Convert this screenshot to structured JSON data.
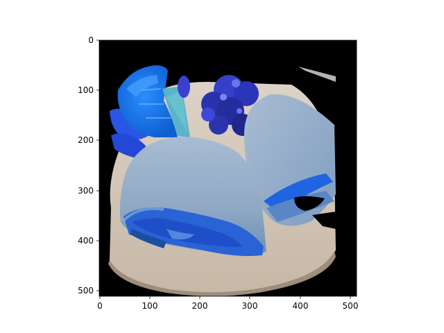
{
  "figure": {
    "background": "#ffffff",
    "image_description_colors": {
      "background": "#000000",
      "plate": "#d9cdc0",
      "wrap": "#8aa6c4",
      "orange_wedge": "#1e78ee",
      "flowers": "#3b4fd6"
    }
  },
  "axes": {
    "x_ticks": [
      "0",
      "100",
      "200",
      "300",
      "400",
      "500"
    ],
    "y_ticks": [
      "0",
      "100",
      "200",
      "300",
      "400",
      "500"
    ],
    "xlim": [
      0,
      512
    ],
    "ylim": [
      512,
      0
    ]
  },
  "chart_data": {
    "type": "image",
    "title": "",
    "xlabel": "",
    "ylabel": "",
    "x_ticks": [
      0,
      100,
      200,
      300,
      400,
      500
    ],
    "y_ticks": [
      0,
      100,
      200,
      300,
      400,
      500
    ],
    "xlim": [
      0,
      512
    ],
    "ylim": [
      512,
      0
    ],
    "grid": false
  }
}
